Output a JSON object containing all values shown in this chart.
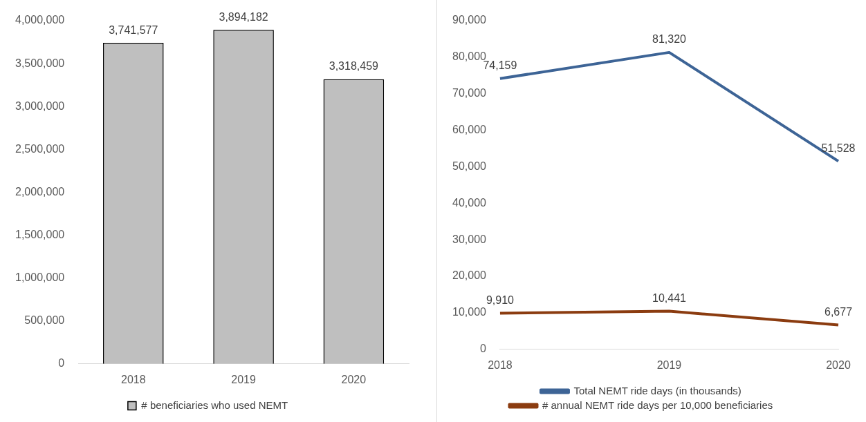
{
  "chart_data": [
    {
      "type": "bar",
      "categories": [
        "2018",
        "2019",
        "2020"
      ],
      "series": [
        {
          "name": "# beneficiaries who used NEMT",
          "color": "#bfbfbf",
          "values": [
            3741577,
            3894182,
            3318459
          ],
          "value_labels": [
            "3,741,577",
            "3,894,182",
            "3,318,459"
          ]
        }
      ],
      "ylim": [
        0,
        4000000
      ],
      "yticks": [
        0,
        {
          "value": 500000,
          "label": "500,000"
        },
        {
          "value": 1000000,
          "label": "1,000,000"
        },
        {
          "value": 1500000,
          "label": "1,500,000"
        },
        {
          "value": 2000000,
          "label": "2,000,000"
        },
        {
          "value": 2500000,
          "label": "2,500,000"
        },
        {
          "value": 3000000,
          "label": "3,000,000"
        },
        {
          "value": 3500000,
          "label": "3,500,000"
        },
        {
          "value": 4000000,
          "label": "4,000,000"
        }
      ],
      "legend": "bottom"
    },
    {
      "type": "line",
      "categories": [
        "2018",
        "2019",
        "2020"
      ],
      "series": [
        {
          "name": "Total NEMT ride days (in thousands)",
          "color": "#3d6496",
          "values": [
            74159,
            81320,
            51528
          ],
          "value_labels": [
            "74,159",
            "81,320",
            "51,528"
          ]
        },
        {
          "name": "# annual NEMT ride days per 10,000 beneficiaries",
          "color": "#8b3c10",
          "values": [
            9910,
            10441,
            6677
          ],
          "value_labels": [
            "9,910",
            "10,441",
            "6,677"
          ]
        }
      ],
      "ylim": [
        0,
        90000
      ],
      "yticks": [
        0,
        {
          "value": 10000,
          "label": "10,000"
        },
        {
          "value": 20000,
          "label": "20,000"
        },
        {
          "value": 30000,
          "label": "30,000"
        },
        {
          "value": 40000,
          "label": "40,000"
        },
        {
          "value": 50000,
          "label": "50,000"
        },
        {
          "value": 60000,
          "label": "60,000"
        },
        {
          "value": 70000,
          "label": "70,000"
        },
        {
          "value": 80000,
          "label": "80,000"
        },
        {
          "value": 90000,
          "label": "90,000"
        }
      ],
      "legend": "bottom",
      "marker": "none"
    }
  ]
}
